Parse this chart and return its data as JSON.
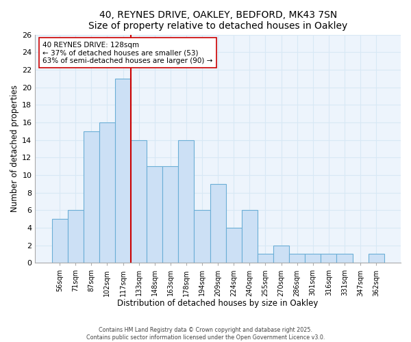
{
  "title": "40, REYNES DRIVE, OAKLEY, BEDFORD, MK43 7SN",
  "subtitle": "Size of property relative to detached houses in Oakley",
  "xlabel": "Distribution of detached houses by size in Oakley",
  "ylabel": "Number of detached properties",
  "bar_labels": [
    "56sqm",
    "71sqm",
    "87sqm",
    "102sqm",
    "117sqm",
    "133sqm",
    "148sqm",
    "163sqm",
    "178sqm",
    "194sqm",
    "209sqm",
    "224sqm",
    "240sqm",
    "255sqm",
    "270sqm",
    "286sqm",
    "301sqm",
    "316sqm",
    "331sqm",
    "347sqm",
    "362sqm"
  ],
  "bar_values": [
    5,
    6,
    15,
    16,
    21,
    14,
    11,
    11,
    14,
    6,
    9,
    4,
    6,
    1,
    2,
    1,
    1,
    1,
    1,
    0,
    1
  ],
  "bar_color": "#cce0f5",
  "bar_edge_color": "#6baed6",
  "vline_x_idx": 5,
  "vline_color": "#cc0000",
  "ylim": [
    0,
    26
  ],
  "yticks": [
    0,
    2,
    4,
    6,
    8,
    10,
    12,
    14,
    16,
    18,
    20,
    22,
    24,
    26
  ],
  "annotation_title": "40 REYNES DRIVE: 128sqm",
  "annotation_line1": "← 37% of detached houses are smaller (53)",
  "annotation_line2": "63% of semi-detached houses are larger (90) →",
  "footer_line1": "Contains HM Land Registry data © Crown copyright and database right 2025.",
  "footer_line2": "Contains public sector information licensed under the Open Government Licence v3.0.",
  "background_color": "#edf4fc",
  "grid_color": "#d8e8f5",
  "fig_bg_color": "#ffffff"
}
